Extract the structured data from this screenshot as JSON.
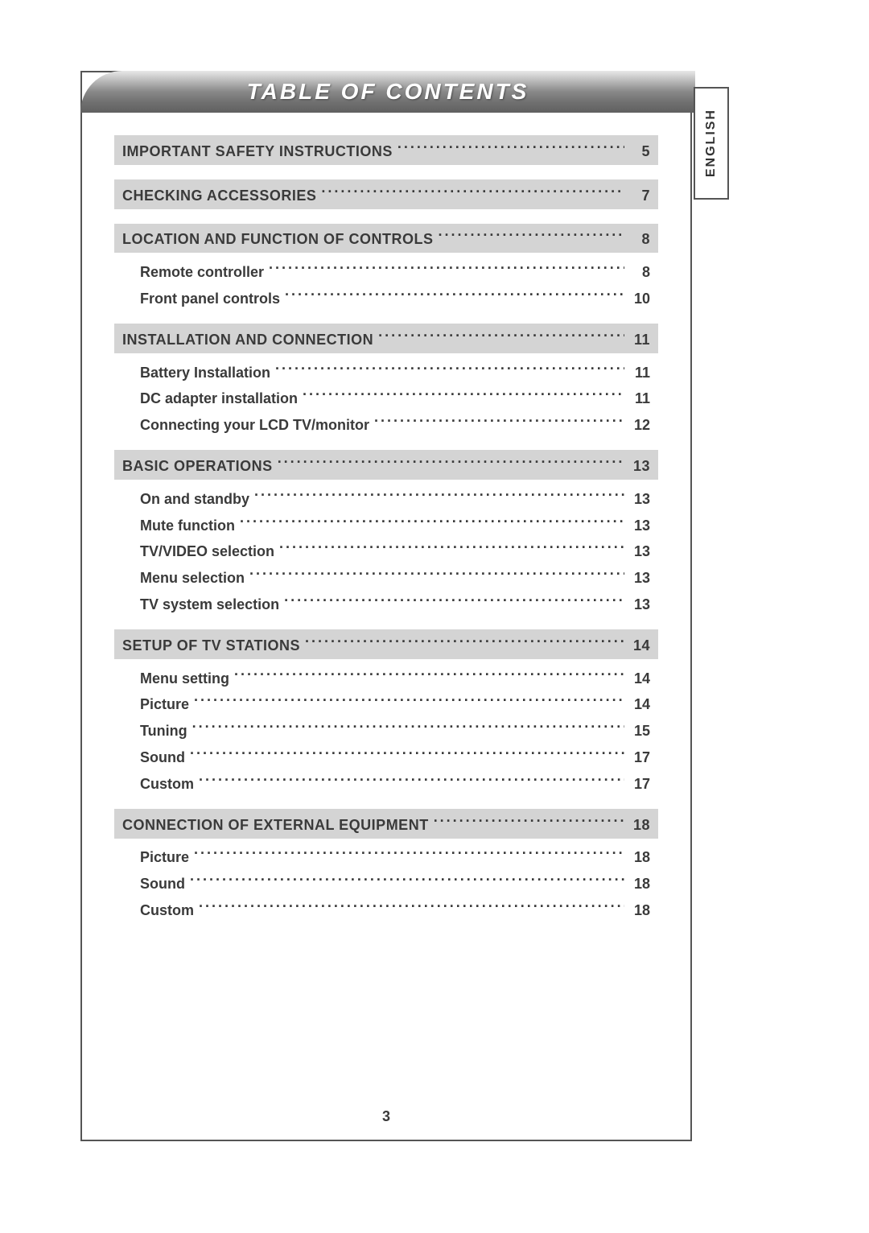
{
  "title": "TABLE OF CONTENTS",
  "side_tab": "ENGLISH",
  "page_number": "3",
  "colors": {
    "banner_gradient_top": "#e8e8e8",
    "banner_gradient_bottom": "#606060",
    "section_bg": "#d4d4d4",
    "text": "#3a3a3a",
    "border": "#555555",
    "page_bg": "#ffffff"
  },
  "sections": [
    {
      "label": "IMPORTANT SAFETY INSTRUCTIONS",
      "page": "5",
      "subs": []
    },
    {
      "label": "CHECKING ACCESSORIES",
      "page": "7",
      "subs": []
    },
    {
      "label": "LOCATION AND FUNCTION OF CONTROLS",
      "page": "8",
      "subs": [
        {
          "label": "Remote controller",
          "page": "8"
        },
        {
          "label": "Front panel controls",
          "page": "10"
        }
      ]
    },
    {
      "label": "INSTALLATION AND CONNECTION",
      "page": "11",
      "subs": [
        {
          "label": "Battery Installation",
          "page": "11"
        },
        {
          "label": "DC adapter installation",
          "page": "11"
        },
        {
          "label": "Connecting your LCD TV/monitor",
          "page": "12"
        }
      ]
    },
    {
      "label": "BASIC OPERATIONS",
      "page": "13",
      "subs": [
        {
          "label": "On and standby",
          "page": "13"
        },
        {
          "label": "Mute function",
          "page": "13"
        },
        {
          "label": "TV/VIDEO selection",
          "page": "13"
        },
        {
          "label": "Menu selection",
          "page": "13"
        },
        {
          "label": "TV system selection",
          "page": "13"
        }
      ]
    },
    {
      "label": "SETUP OF TV STATIONS",
      "page": "14",
      "subs": [
        {
          "label": "Menu setting",
          "page": "14"
        },
        {
          "label": "Picture",
          "page": "14"
        },
        {
          "label": "Tuning",
          "page": "15"
        },
        {
          "label": "Sound",
          "page": "17"
        },
        {
          "label": "Custom",
          "page": "17"
        }
      ]
    },
    {
      "label": "CONNECTION OF EXTERNAL EQUIPMENT",
      "page": "18",
      "subs": [
        {
          "label": "Picture",
          "page": "18"
        },
        {
          "label": "Sound",
          "page": "18"
        },
        {
          "label": "Custom",
          "page": "18"
        }
      ]
    }
  ]
}
